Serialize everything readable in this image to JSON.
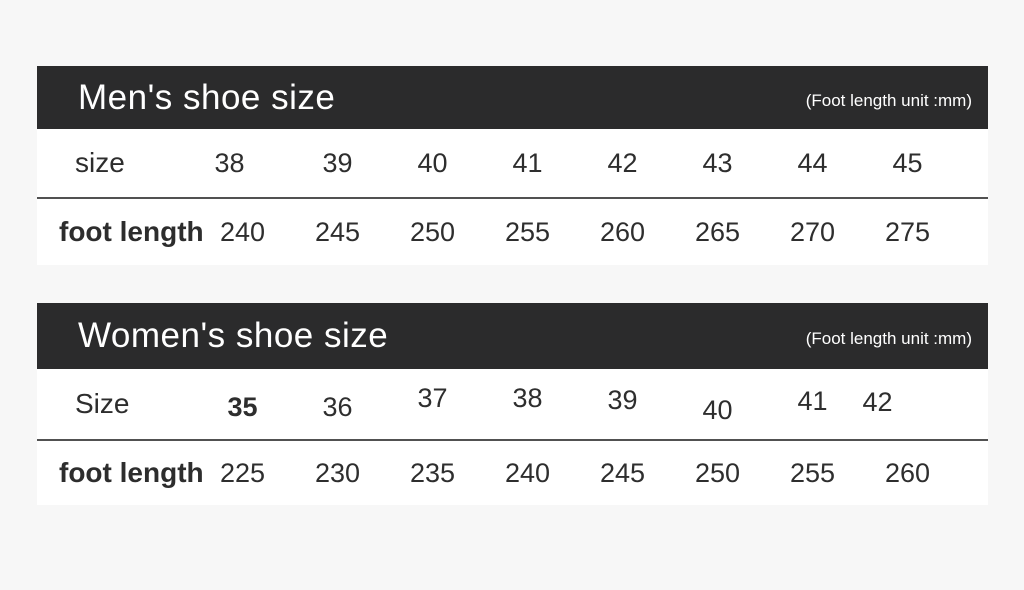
{
  "colors": {
    "page_background": "#f7f7f7",
    "header_bar": "#2b2b2c",
    "header_text": "#ffffff",
    "table_background": "#ffffff",
    "body_text": "#2e2e2e",
    "divider": "#515151"
  },
  "chart_data": [
    {
      "type": "table",
      "title": "Men's shoe size",
      "unit_note": "(Foot length unit :mm)",
      "rows": [
        {
          "label": "size",
          "values": [
            "38",
            "39",
            "40",
            "41",
            "42",
            "43",
            "44",
            "45"
          ]
        },
        {
          "label": "foot length",
          "values": [
            "240",
            "245",
            "250",
            "255",
            "260",
            "265",
            "270",
            "275"
          ]
        }
      ]
    },
    {
      "type": "table",
      "title": "Women's shoe size",
      "unit_note": "(Foot length unit :mm)",
      "rows": [
        {
          "label": "Size",
          "values": [
            "35",
            "36",
            "37",
            "38",
            "39",
            "40",
            "41",
            "42"
          ]
        },
        {
          "label": "foot length",
          "values": [
            "225",
            "230",
            "235",
            "240",
            "245",
            "250",
            "255",
            "260"
          ]
        }
      ]
    }
  ]
}
